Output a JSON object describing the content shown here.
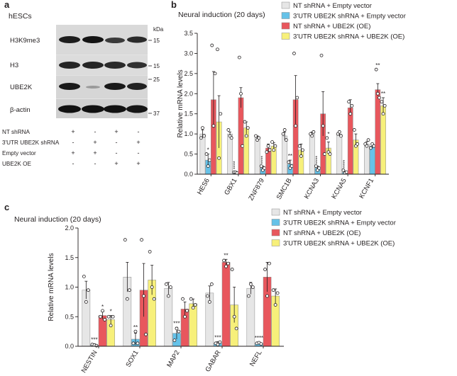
{
  "panels": {
    "a": {
      "letter": "a",
      "cell_label": "hESCs",
      "kda_label": "kDa",
      "blots": [
        {
          "label": "H3K9me3",
          "mw": "15"
        },
        {
          "label": "H3",
          "mw": "15"
        },
        {
          "label": "UBE2K",
          "mw": "25"
        },
        {
          "label": "β-actin",
          "mw": "37"
        }
      ],
      "conditions": [
        {
          "label": "NT shRNA",
          "signs": [
            "+",
            "-",
            "+",
            "-"
          ]
        },
        {
          "label": "3'UTR UBE2K shRNA",
          "signs": [
            "-",
            "+",
            "-",
            "+"
          ]
        },
        {
          "label": "Empty vector",
          "signs": [
            "+",
            "+",
            "-",
            "-"
          ]
        },
        {
          "label": "UBE2K OE",
          "signs": [
            "-",
            "-",
            "+",
            "+"
          ]
        }
      ]
    },
    "b": {
      "letter": "b"
    },
    "c": {
      "letter": "c"
    }
  },
  "chart_data": [
    {
      "id": "b",
      "type": "bar",
      "title": "Neural induction (20 days)",
      "ylabel": "Relative mRNA levels",
      "xlabel": "",
      "ylim": [
        0,
        3.5
      ],
      "yticks": [
        "0.0",
        "0.5",
        "1.0",
        "1.5",
        "2.0",
        "2.5",
        "3.0",
        "3.5"
      ],
      "categories": [
        "HES6",
        "GBX1",
        "ZNF879",
        "SMC1B",
        "KCNA3",
        "KCNA5",
        "KCNF1"
      ],
      "legend": [
        "NT shRNA + Empty vector",
        "3'UTR UBE2K shRNA + Empty vector",
        "NT shRNA + UBE2K (OE)",
        "3'UTR UBE2K shRNA + UBE2K (OE)"
      ],
      "colors": [
        "#e6e6e6",
        "#66c2e8",
        "#e8575d",
        "#f7f07a"
      ],
      "series": [
        {
          "name": "NT shRNA + Empty vector",
          "values": [
            1.0,
            1.0,
            0.9,
            0.95,
            1.0,
            1.0,
            0.75
          ],
          "errors": [
            0.1,
            0.05,
            0.05,
            0.1,
            0.05,
            0.05,
            0.06
          ]
        },
        {
          "name": "3'UTR UBE2K shRNA + Empty vector",
          "values": [
            0.35,
            0.05,
            0.15,
            0.25,
            0.15,
            0.05,
            0.7
          ],
          "errors": [
            0.15,
            0.02,
            0.05,
            0.1,
            0.05,
            0.03,
            0.05
          ]
        },
        {
          "name": "NT shRNA + UBE2K (OE)",
          "values": [
            1.85,
            1.9,
            0.65,
            1.85,
            1.5,
            1.65,
            2.1
          ],
          "errors": [
            0.7,
            0.25,
            0.1,
            0.6,
            0.55,
            0.2,
            0.15
          ]
        },
        {
          "name": "3'UTR UBE2K shRNA + UBE2K (OE)",
          "values": [
            1.3,
            1.15,
            0.7,
            0.6,
            0.65,
            0.85,
            1.7
          ],
          "errors": [
            0.65,
            0.15,
            0.08,
            0.15,
            0.15,
            0.15,
            0.2
          ]
        }
      ],
      "points": [
        [
          [
            0.9,
            1.15,
            0.95
          ],
          [
            0.5,
            0.2,
            0.35
          ],
          [
            3.2,
            1.2,
            2.5
          ],
          [
            3.1,
            0.4,
            1.5
          ]
        ],
        [
          [
            1.1,
            0.95,
            0.9
          ],
          [
            0.05,
            0.05,
            0.03
          ],
          [
            2.9,
            2.0,
            0.7
          ],
          [
            1.3,
            0.95,
            1.15
          ]
        ],
        [
          [
            0.95,
            0.85,
            0.9
          ],
          [
            0.2,
            0.1,
            0.15
          ],
          [
            0.55,
            0.7,
            0.6
          ],
          [
            0.8,
            0.6,
            0.7
          ]
        ],
        [
          [
            1.0,
            1.1,
            0.85
          ],
          [
            0.3,
            0.15,
            0.2
          ],
          [
            3.0,
            1.2,
            1.9
          ],
          [
            0.7,
            0.45,
            0.6
          ]
        ],
        [
          [
            1.0,
            0.95,
            1.05
          ],
          [
            0.2,
            0.1,
            0.15
          ],
          [
            2.95,
            1.2,
            0.5
          ],
          [
            0.9,
            0.55,
            0.5
          ]
        ],
        [
          [
            1.0,
            1.05,
            0.95
          ],
          [
            0.1,
            0.03,
            0.05
          ],
          [
            1.8,
            1.5,
            1.7
          ],
          [
            1.1,
            0.7,
            0.75
          ]
        ],
        [
          [
            0.75,
            0.7,
            0.85
          ],
          [
            0.65,
            0.75,
            0.7
          ],
          [
            2.6,
            2.0,
            1.9
          ],
          [
            1.8,
            1.5,
            1.7
          ]
        ]
      ],
      "significance": [
        [
          "",
          "*",
          "",
          ""
        ],
        [
          "",
          "****",
          "",
          ""
        ],
        [
          "",
          "****",
          "",
          ""
        ],
        [
          "",
          "**",
          "",
          ""
        ],
        [
          "",
          "****",
          "",
          "*"
        ],
        [
          "",
          "****",
          "",
          ""
        ],
        [
          "",
          "",
          "**",
          "**"
        ]
      ]
    },
    {
      "id": "c",
      "type": "bar",
      "title": "Neural induction (20 days)",
      "ylabel": "Relative mRNA levels",
      "xlabel": "",
      "ylim": [
        0,
        2.0
      ],
      "yticks": [
        "0.0",
        "0.5",
        "1.0",
        "1.5",
        "2.0"
      ],
      "categories": [
        "NESTIN",
        "SOX1",
        "MAP2",
        "GABAR",
        "NEFL"
      ],
      "legend": [
        "NT shRNA + Empty vector",
        "3'UTR UBE2K shRNA + Empty vector",
        "NT shRNA + UBE2K (OE)",
        "3'UTR UBE2K shRNA + UBE2K (OE)"
      ],
      "colors": [
        "#e6e6e6",
        "#66c2e8",
        "#e8575d",
        "#f7f07a"
      ],
      "series": [
        {
          "name": "NT shRNA + Empty vector",
          "values": [
            0.95,
            1.17,
            0.98,
            0.9,
            0.98
          ],
          "errors": [
            0.15,
            0.25,
            0.1,
            0.12,
            0.1
          ]
        },
        {
          "name": "3'UTR UBE2K shRNA + Empty vector",
          "values": [
            0.02,
            0.12,
            0.22,
            0.05,
            0.05
          ],
          "errors": [
            0.02,
            0.1,
            0.1,
            0.03,
            0.02
          ]
        },
        {
          "name": "NT shRNA + UBE2K (OE)",
          "values": [
            0.52,
            0.95,
            0.63,
            1.42,
            1.17
          ],
          "errors": [
            0.06,
            0.45,
            0.12,
            0.05,
            0.25
          ]
        },
        {
          "name": "3'UTR UBE2K shRNA + UBE2K (OE)",
          "values": [
            0.45,
            1.12,
            0.72,
            0.7,
            0.85
          ],
          "errors": [
            0.07,
            0.25,
            0.08,
            0.3,
            0.12
          ]
        }
      ],
      "points": [
        [
          [
            1.18,
            0.75,
            0.95
          ],
          [
            0.03,
            0.02,
            0.01
          ],
          [
            0.5,
            0.6,
            0.45
          ],
          [
            0.5,
            0.35,
            0.5
          ]
        ],
        [
          [
            1.8,
            0.8,
            0.95
          ],
          [
            0.05,
            0.25,
            0.05
          ],
          [
            1.8,
            0.85,
            0.2
          ],
          [
            1.6,
            1.0,
            0.8
          ]
        ],
        [
          [
            1.05,
            0.85,
            1.0
          ],
          [
            0.1,
            0.3,
            0.25
          ],
          [
            0.8,
            0.5,
            0.6
          ],
          [
            0.8,
            0.65,
            0.7
          ]
        ],
        [
          [
            0.85,
            0.75,
            1.05
          ],
          [
            0.05,
            0.03,
            0.07
          ],
          [
            1.45,
            1.35,
            1.4
          ],
          [
            1.3,
            0.5,
            0.3
          ]
        ],
        [
          [
            0.85,
            1.05,
            1.0
          ],
          [
            0.05,
            0.06,
            0.04
          ],
          [
            1.3,
            0.85,
            1.4
          ],
          [
            0.95,
            0.7,
            0.9
          ]
        ]
      ],
      "significance": [
        [
          "",
          "***",
          "*",
          "*"
        ],
        [
          "",
          "**",
          "",
          ""
        ],
        [
          "",
          "***",
          "",
          ""
        ],
        [
          "",
          "***",
          "**",
          ""
        ],
        [
          "",
          "****",
          "",
          ""
        ]
      ]
    }
  ]
}
